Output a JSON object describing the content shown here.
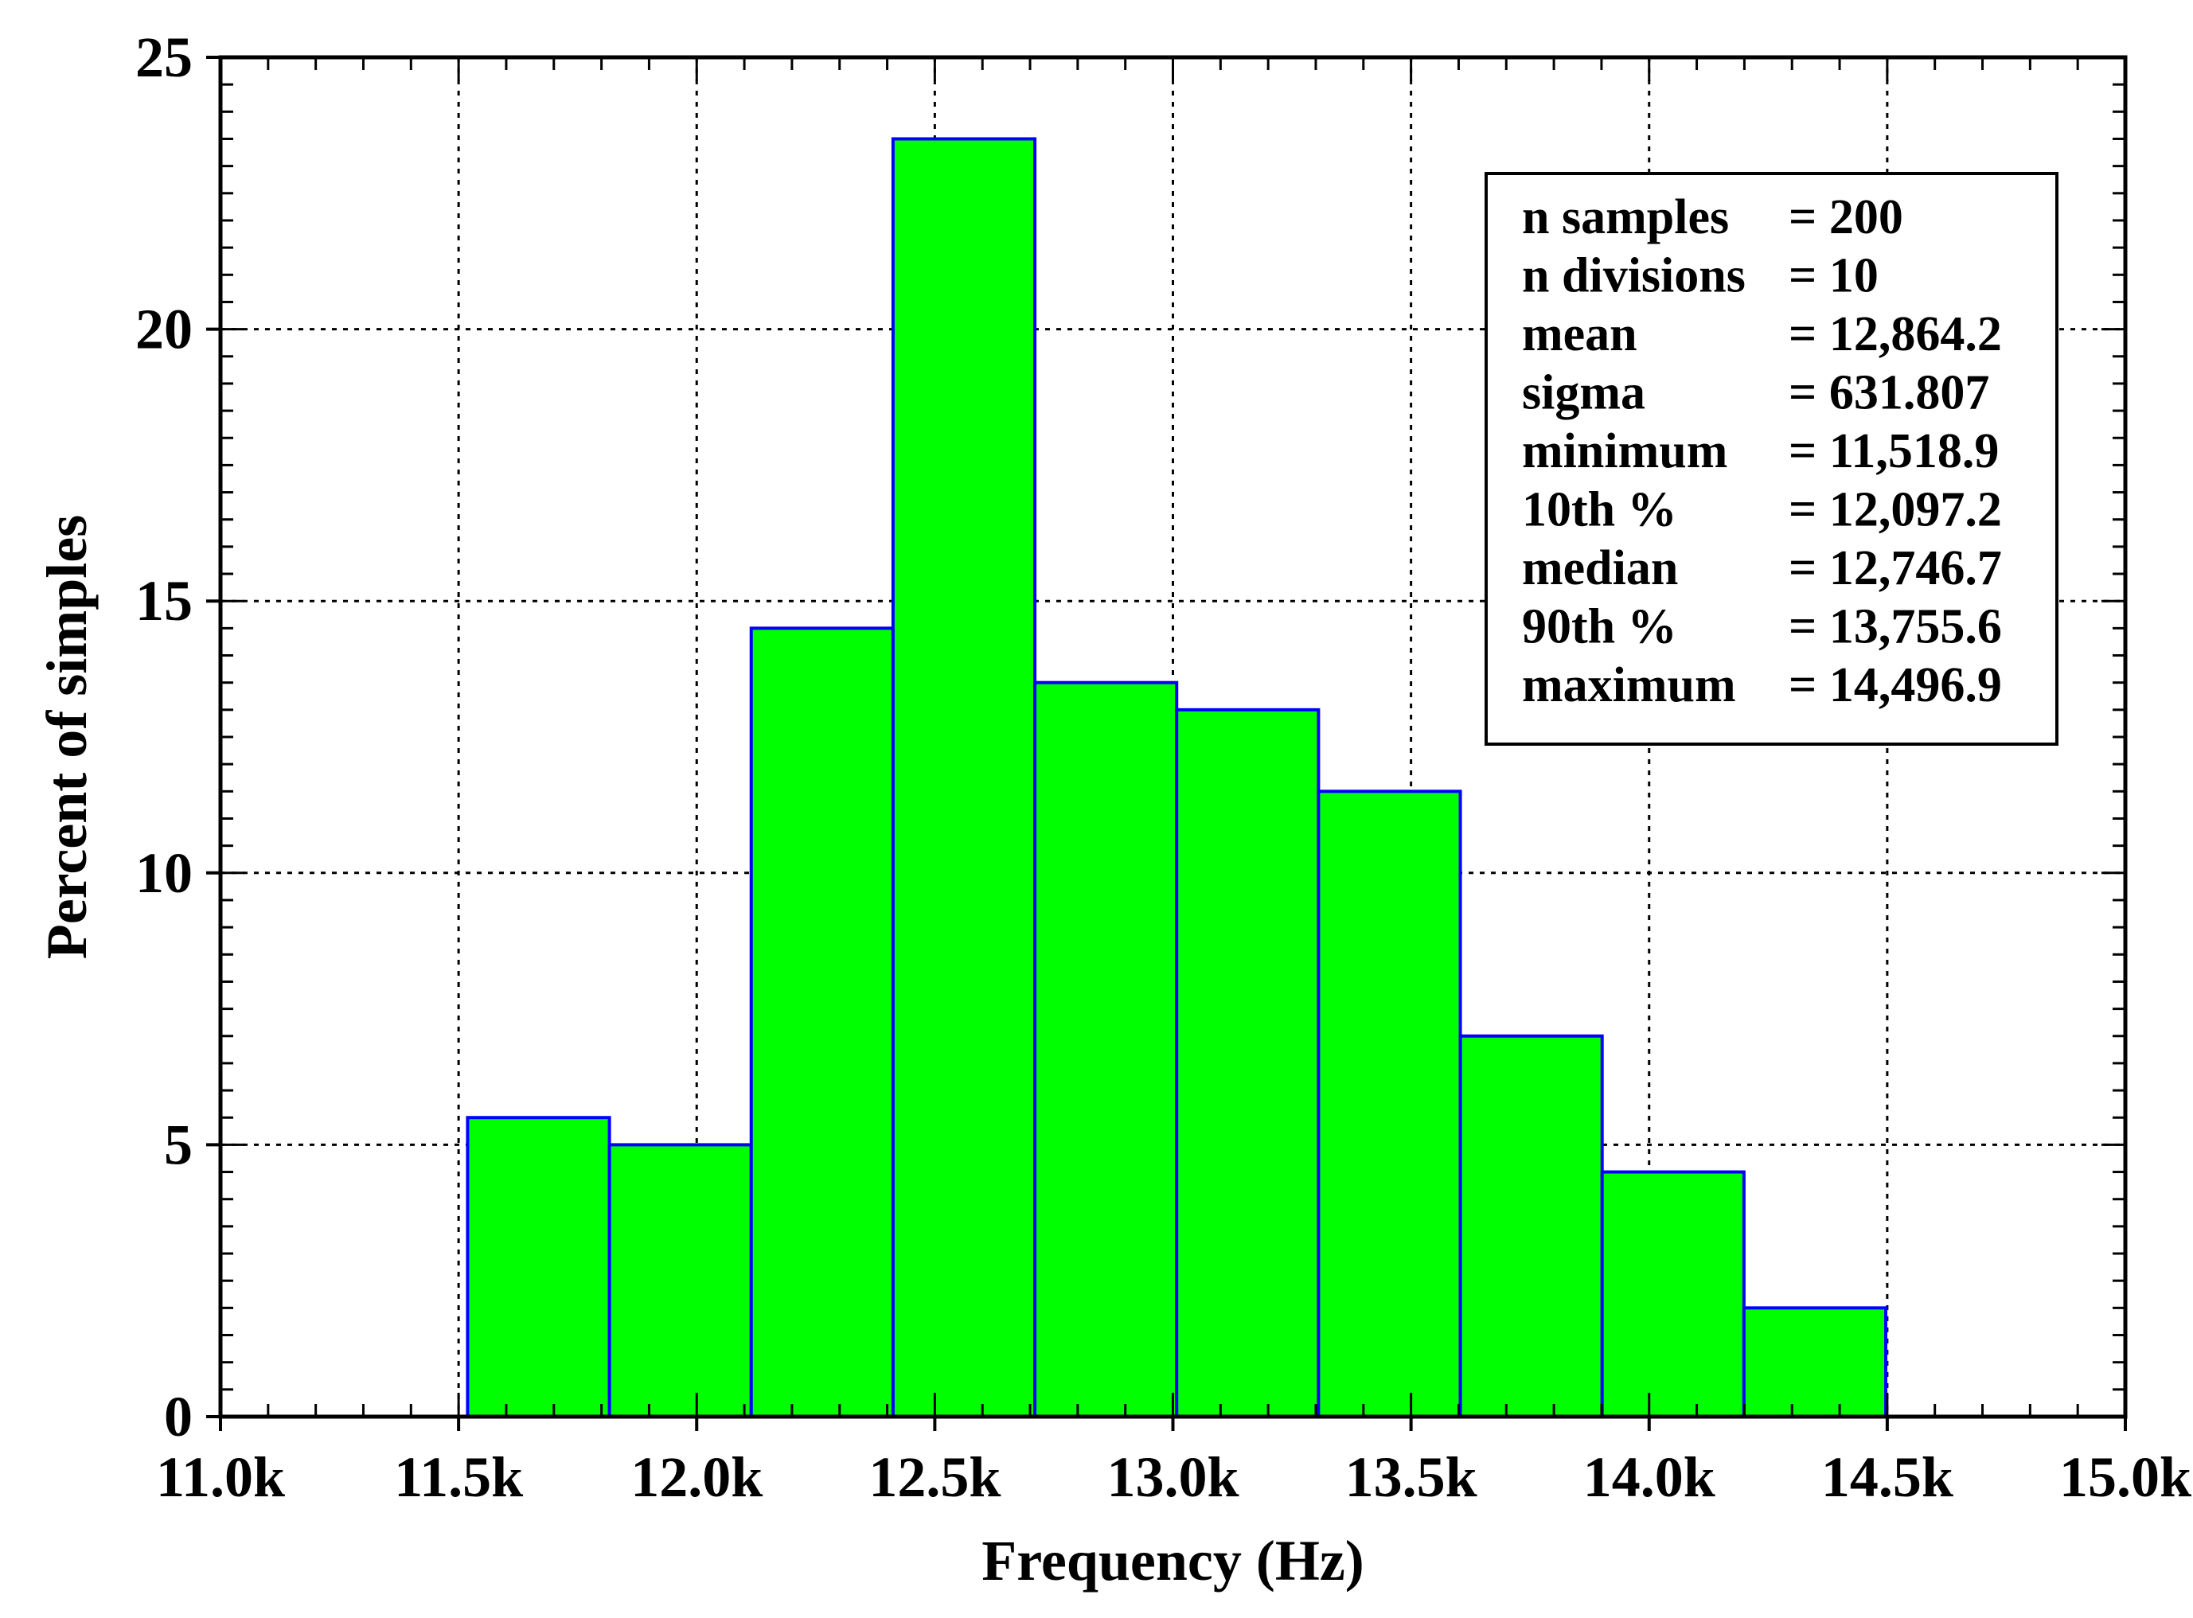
{
  "chart_data": {
    "type": "bar",
    "title": "",
    "xlabel": "Frequency (Hz)",
    "ylabel": "Percent of simples",
    "xlim": [
      11000,
      15000
    ],
    "ylim": [
      0,
      25
    ],
    "grid": true,
    "x_tick_values": [
      11000,
      11500,
      12000,
      12500,
      13000,
      13500,
      14000,
      14500,
      15000
    ],
    "x_tick_labels": [
      "11.0k",
      "11.5k",
      "12.0k",
      "12.5k",
      "13.0k",
      "13.5k",
      "14.0k",
      "14.5k",
      "15.0k"
    ],
    "y_tick_values": [
      0,
      5,
      10,
      15,
      20,
      25
    ],
    "y_tick_labels": [
      "0",
      "5",
      "10",
      "15",
      "20",
      "25"
    ],
    "bins": [
      {
        "x0": 11518.9,
        "x1": 11816.7,
        "value": 5.5
      },
      {
        "x0": 11816.7,
        "x1": 12114.5,
        "value": 5.0
      },
      {
        "x0": 12114.5,
        "x1": 12412.3,
        "value": 14.5
      },
      {
        "x0": 12412.3,
        "x1": 12710.1,
        "value": 23.5
      },
      {
        "x0": 12710.1,
        "x1": 13007.9,
        "value": 13.5
      },
      {
        "x0": 13007.9,
        "x1": 13305.7,
        "value": 13.0
      },
      {
        "x0": 13305.7,
        "x1": 13603.5,
        "value": 11.5
      },
      {
        "x0": 13603.5,
        "x1": 13901.3,
        "value": 7.0
      },
      {
        "x0": 13901.3,
        "x1": 14199.1,
        "value": 4.5
      },
      {
        "x0": 14199.1,
        "x1": 14496.9,
        "value": 2.0
      }
    ],
    "bar_fill": "#00ff00",
    "bar_stroke": "#0000ff",
    "stats_box": {
      "placement": "top-right",
      "rows": [
        {
          "label": "n samples",
          "value": "= 200"
        },
        {
          "label": "n divisions",
          "value": "= 10"
        },
        {
          "label": "mean",
          "value": "= 12,864.2"
        },
        {
          "label": "sigma",
          "value": "= 631.807"
        },
        {
          "label": "minimum",
          "value": "= 11,518.9"
        },
        {
          "label": "10th %",
          "value": "= 12,097.2"
        },
        {
          "label": "median",
          "value": "= 12,746.7"
        },
        {
          "label": "90th %",
          "value": "= 13,755.6"
        },
        {
          "label": "maximum",
          "value": "= 14,496.9"
        }
      ]
    }
  }
}
